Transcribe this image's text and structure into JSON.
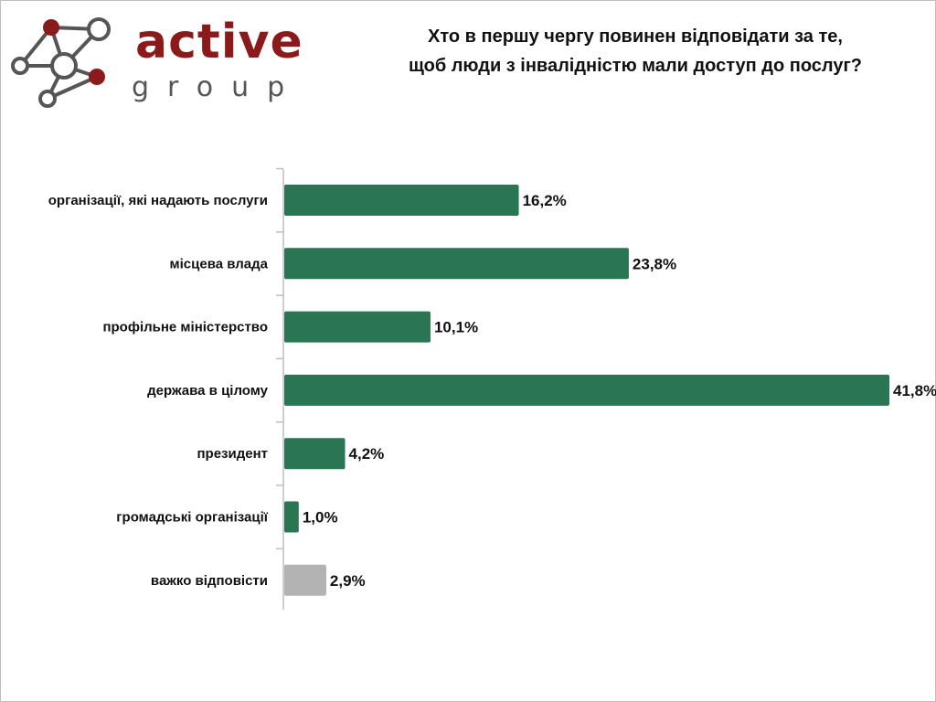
{
  "logo": {
    "word": "active",
    "sub": "group"
  },
  "title_lines": [
    "Хто в першу чергу повинен відповідати за те,",
    "щоб люди з інвалідністю мали доступ до послуг?"
  ],
  "colors": {
    "bar": "#2a7554",
    "bar_muted": "#b3b3b3",
    "logo_red": "#8b1a1a",
    "logo_grey": "#555555"
  },
  "chart_data": {
    "type": "bar",
    "orientation": "horizontal",
    "title": "Хто в першу чергу повинен відповідати за те, щоб люди з інвалідністю мали доступ до послуг?",
    "categories": [
      "організації, які надають послуги",
      "місцева влада",
      "профільне міністерство",
      "держава в цілому",
      "президент",
      "громадські організації",
      "важко відповісти"
    ],
    "values": [
      16.2,
      23.8,
      10.1,
      41.8,
      4.2,
      1.0,
      2.9
    ],
    "value_labels": [
      "16,2%",
      "23,8%",
      "10,1%",
      "41,8%",
      "4,2%",
      "1,0%",
      "2,9%"
    ],
    "muted_categories": [
      "важко відповісти"
    ],
    "unit": "%",
    "xlim": [
      0,
      41.8
    ],
    "grid": false,
    "legend": "none"
  }
}
